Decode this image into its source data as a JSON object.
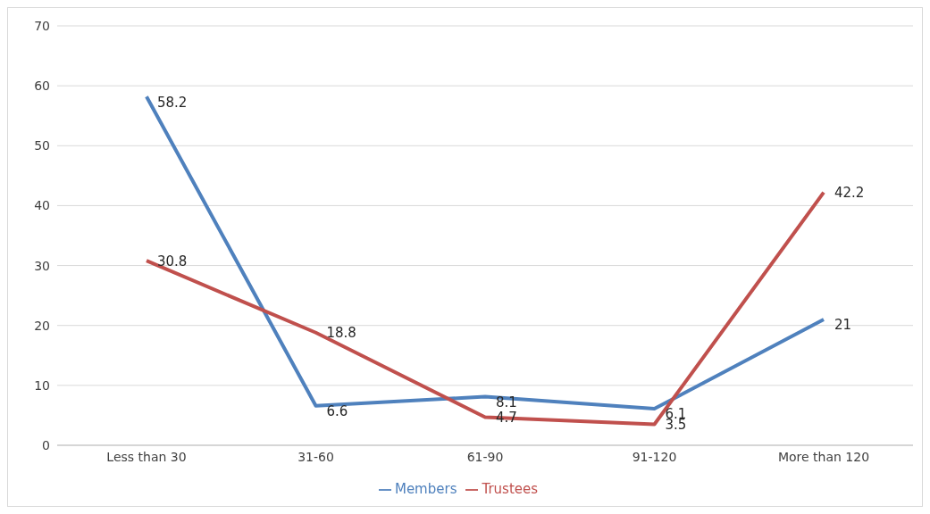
{
  "chart_data": {
    "type": "line",
    "categories": [
      "Less than 30",
      "31-60",
      "61-90",
      "91-120",
      "More than 120"
    ],
    "series": [
      {
        "name": "Members",
        "color": "#4f81bd",
        "values": [
          58.2,
          6.6,
          8.1,
          6.1,
          21
        ]
      },
      {
        "name": "Trustees",
        "color": "#c0504d",
        "values": [
          30.8,
          18.8,
          4.7,
          3.5,
          42.2
        ]
      }
    ],
    "ylim": [
      0,
      70
    ],
    "yticks": [
      0,
      10,
      20,
      30,
      40,
      50,
      60,
      70
    ],
    "grid": "y",
    "legend": "bottom",
    "data_labels": true,
    "marker": "none",
    "line_style": "solid"
  }
}
